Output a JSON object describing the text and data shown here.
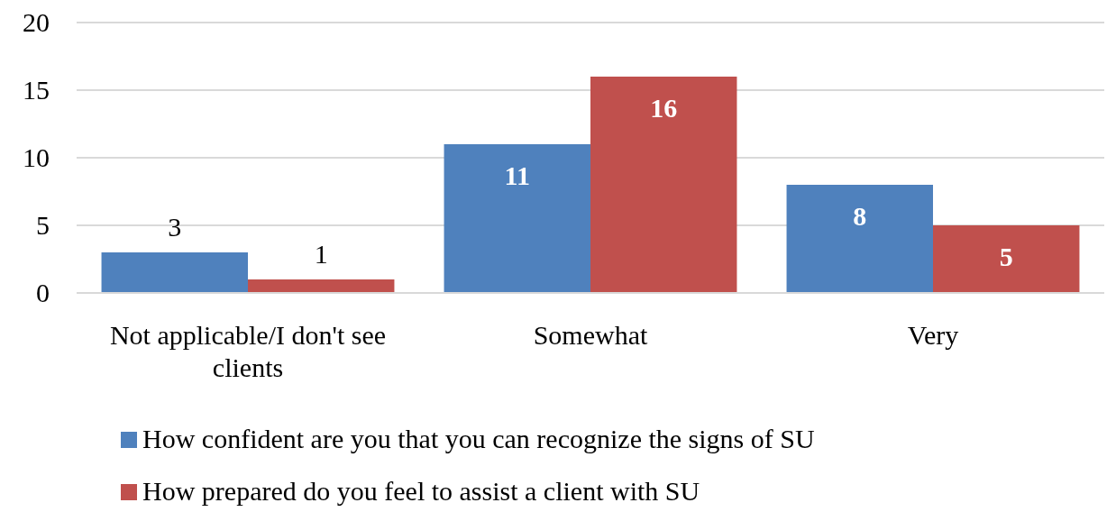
{
  "chart_data": {
    "type": "bar",
    "categories": [
      "Not applicable/I don't see clients",
      "Somewhat",
      "Very"
    ],
    "series": [
      {
        "name": "How confident are you that you can recognize the signs of SU",
        "color": "#4f81bd",
        "values": [
          3,
          11,
          8
        ]
      },
      {
        "name": "How prepared do you feel to assist a client with SU",
        "color": "#c0504d",
        "values": [
          1,
          16,
          5
        ]
      }
    ],
    "ylim": [
      0,
      20
    ],
    "yticks": [
      0,
      5,
      10,
      15,
      20
    ],
    "grid": "y",
    "legend": "bottom",
    "data_labels": true
  }
}
